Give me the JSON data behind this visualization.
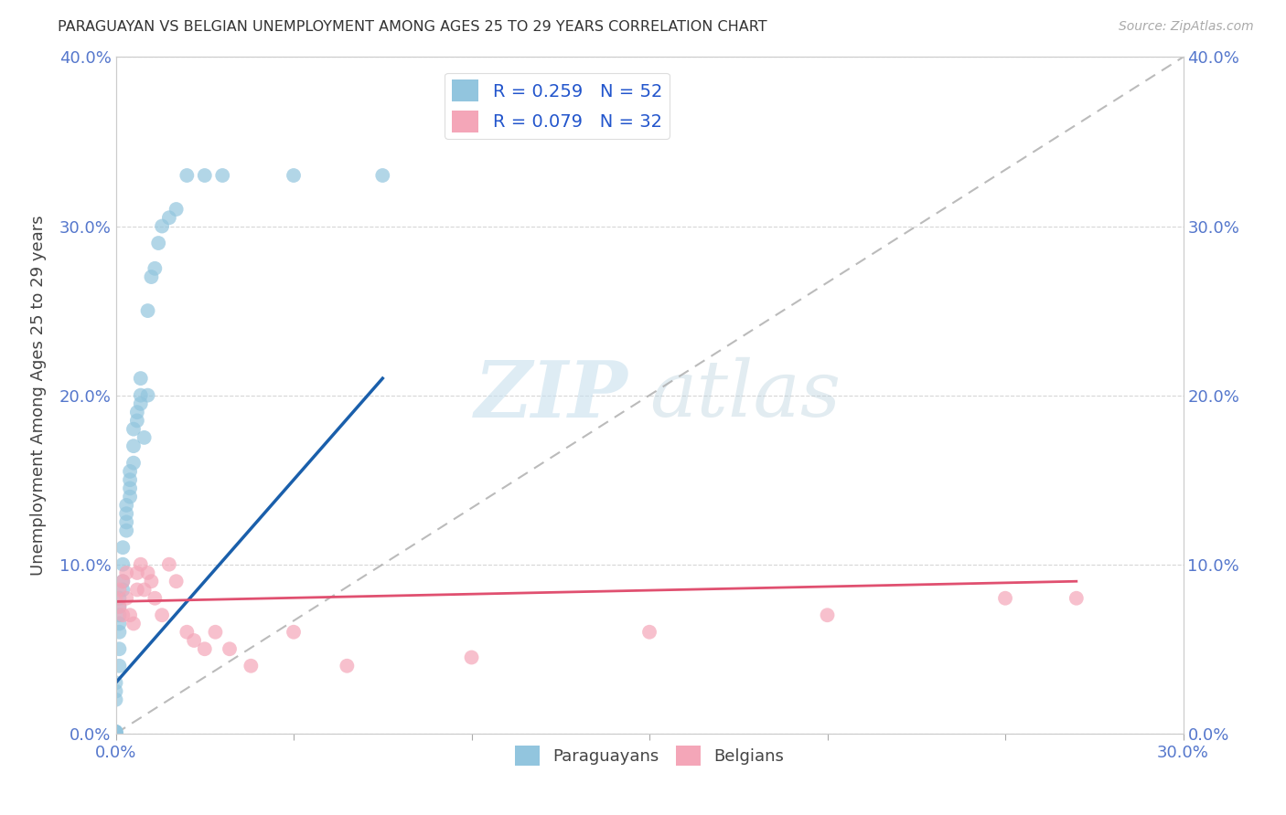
{
  "title": "PARAGUAYAN VS BELGIAN UNEMPLOYMENT AMONG AGES 25 TO 29 YEARS CORRELATION CHART",
  "source": "Source: ZipAtlas.com",
  "ylabel": "Unemployment Among Ages 25 to 29 years",
  "xlim": [
    0.0,
    0.3
  ],
  "ylim": [
    0.0,
    0.4
  ],
  "xtick_positions": [
    0.0,
    0.05,
    0.1,
    0.15,
    0.2,
    0.25,
    0.3
  ],
  "ytick_positions": [
    0.0,
    0.1,
    0.2,
    0.3,
    0.4
  ],
  "paraguayan_R": 0.259,
  "paraguayan_N": 52,
  "belgian_R": 0.079,
  "belgian_N": 32,
  "paraguayan_color": "#92C5DE",
  "belgian_color": "#F4A6B8",
  "paraguayan_line_color": "#1A5FAB",
  "belgian_line_color": "#E05070",
  "watermark_zip": "ZIP",
  "watermark_atlas": "atlas",
  "par_x": [
    0.0,
    0.0,
    0.0,
    0.0,
    0.0,
    0.0,
    0.0,
    0.0,
    0.0,
    0.0,
    0.0,
    0.001,
    0.001,
    0.001,
    0.001,
    0.001,
    0.001,
    0.001,
    0.002,
    0.002,
    0.002,
    0.002,
    0.003,
    0.003,
    0.003,
    0.003,
    0.004,
    0.004,
    0.004,
    0.004,
    0.005,
    0.005,
    0.005,
    0.006,
    0.006,
    0.007,
    0.007,
    0.007,
    0.008,
    0.009,
    0.009,
    0.01,
    0.011,
    0.012,
    0.013,
    0.015,
    0.017,
    0.02,
    0.025,
    0.03,
    0.05,
    0.075
  ],
  "par_y": [
    0.0,
    0.0,
    0.0,
    0.0,
    0.001,
    0.001,
    0.001,
    0.001,
    0.02,
    0.025,
    0.03,
    0.04,
    0.05,
    0.06,
    0.065,
    0.07,
    0.075,
    0.08,
    0.085,
    0.09,
    0.1,
    0.11,
    0.12,
    0.125,
    0.13,
    0.135,
    0.14,
    0.145,
    0.15,
    0.155,
    0.16,
    0.17,
    0.18,
    0.185,
    0.19,
    0.195,
    0.2,
    0.21,
    0.175,
    0.2,
    0.25,
    0.27,
    0.275,
    0.29,
    0.3,
    0.305,
    0.31,
    0.33,
    0.33,
    0.33,
    0.33,
    0.33
  ],
  "bel_x": [
    0.0,
    0.001,
    0.001,
    0.002,
    0.002,
    0.003,
    0.003,
    0.004,
    0.005,
    0.006,
    0.006,
    0.007,
    0.008,
    0.009,
    0.01,
    0.011,
    0.013,
    0.015,
    0.017,
    0.02,
    0.022,
    0.025,
    0.028,
    0.032,
    0.038,
    0.05,
    0.065,
    0.1,
    0.15,
    0.2,
    0.25,
    0.27
  ],
  "bel_y": [
    0.08,
    0.075,
    0.085,
    0.07,
    0.09,
    0.08,
    0.095,
    0.07,
    0.065,
    0.085,
    0.095,
    0.1,
    0.085,
    0.095,
    0.09,
    0.08,
    0.07,
    0.1,
    0.09,
    0.06,
    0.055,
    0.05,
    0.06,
    0.05,
    0.04,
    0.06,
    0.04,
    0.045,
    0.06,
    0.07,
    0.08,
    0.08
  ],
  "par_trend_x": [
    0.0,
    0.075
  ],
  "par_trend_y": [
    0.03,
    0.21
  ],
  "bel_trend_x": [
    0.0,
    0.27
  ],
  "bel_trend_y": [
    0.078,
    0.09
  ]
}
